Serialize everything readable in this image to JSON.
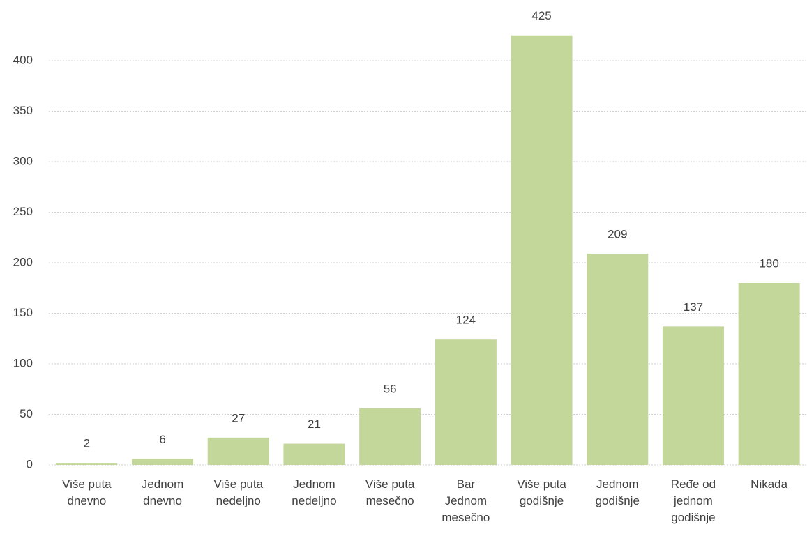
{
  "chart_data": {
    "type": "bar",
    "categories": [
      "Više puta dnevno",
      "Jednom dnevno",
      "Više puta nedeljno",
      "Jednom nedeljno",
      "Više puta mesečno",
      "Bar Jednom mesečno",
      "Više puta godišnje",
      "Jednom godišnje",
      "Ređe od jednom godišnje",
      "Nikada"
    ],
    "values": [
      2,
      6,
      27,
      21,
      56,
      124,
      425,
      209,
      137,
      180
    ],
    "color": "#c4d79b",
    "ylim": [
      0,
      450
    ],
    "yticks": [
      0,
      50,
      100,
      150,
      200,
      250,
      300,
      350,
      400
    ],
    "grid": true
  }
}
